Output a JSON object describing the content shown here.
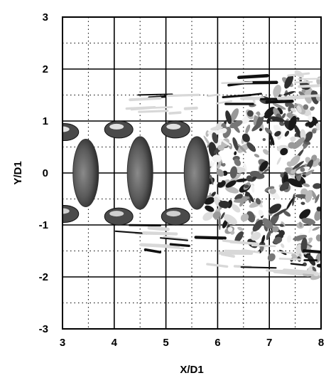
{
  "chart_data": {
    "type": "scatter",
    "title": "",
    "xlabel": "X/D1",
    "ylabel": "Y/D1",
    "xlim": [
      3,
      8
    ],
    "ylim": [
      -3,
      3
    ],
    "x_ticks": [
      "3",
      "4",
      "5",
      "6",
      "7",
      "8"
    ],
    "y_ticks": [
      "3",
      "2",
      "1",
      "0",
      "-1",
      "-2",
      "-3"
    ],
    "major_grid": true,
    "minor_grid": true,
    "minor_grid_style": "dotted",
    "rendering": "grayscale isosurface of jet vortex structures",
    "vortex_rings": [
      {
        "x": 3.45,
        "half_height": 0.65
      },
      {
        "x": 4.5,
        "half_height": 0.7
      },
      {
        "x": 5.6,
        "half_height": 0.7
      }
    ],
    "turbulent_region_x": [
      5.8,
      8.0
    ],
    "turbulent_region_y": [
      -2.0,
      2.1
    ],
    "colors": {
      "background": "#ffffff",
      "grid": "#000000",
      "structures": "#3a3a3a"
    }
  }
}
